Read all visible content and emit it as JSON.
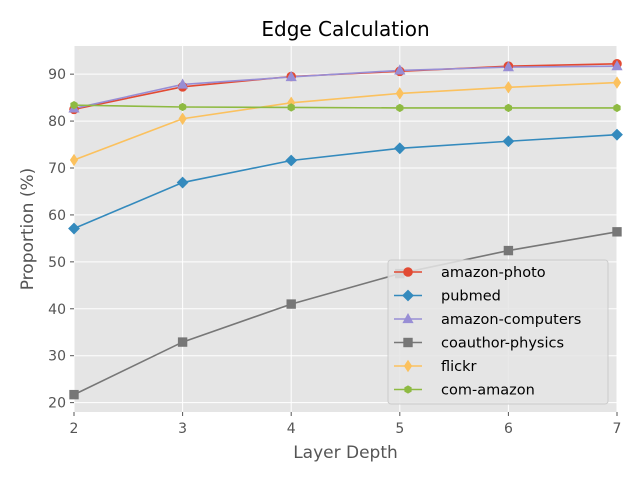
{
  "chart_data": {
    "type": "line",
    "title": "Edge Calculation",
    "xlabel": "Layer Depth",
    "ylabel": "Proportion (%)",
    "x": [
      2,
      3,
      4,
      5,
      6,
      7
    ],
    "xlim": [
      2,
      7
    ],
    "ylim": [
      18,
      96
    ],
    "xticks": [
      2,
      3,
      4,
      5,
      6,
      7
    ],
    "yticks": [
      20,
      30,
      40,
      50,
      60,
      70,
      80,
      90
    ],
    "grid": true,
    "style": "ggplot",
    "legend_position": "lower-right",
    "series": [
      {
        "name": "amazon-photo",
        "color": "#E24A33",
        "marker": "circle",
        "values": [
          82.5,
          87.3,
          89.5,
          90.6,
          91.7,
          92.2
        ]
      },
      {
        "name": "pubmed",
        "color": "#348ABD",
        "marker": "diamond",
        "values": [
          57.1,
          66.9,
          71.6,
          74.2,
          75.7,
          77.1
        ]
      },
      {
        "name": "amazon-computers",
        "color": "#988ED5",
        "marker": "triangle",
        "values": [
          82.7,
          87.8,
          89.4,
          90.8,
          91.5,
          91.7
        ]
      },
      {
        "name": "coauthor-physics",
        "color": "#777777",
        "marker": "square",
        "values": [
          21.7,
          32.9,
          41.0,
          47.5,
          52.4,
          56.4
        ]
      },
      {
        "name": "flickr",
        "color": "#FBC15E",
        "marker": "thin-diamond",
        "values": [
          71.7,
          80.5,
          83.9,
          85.9,
          87.2,
          88.2
        ]
      },
      {
        "name": "com-amazon",
        "color": "#8EBA42",
        "marker": "hexagon",
        "values": [
          83.4,
          83.0,
          82.9,
          82.8,
          82.8,
          82.8
        ]
      }
    ]
  }
}
